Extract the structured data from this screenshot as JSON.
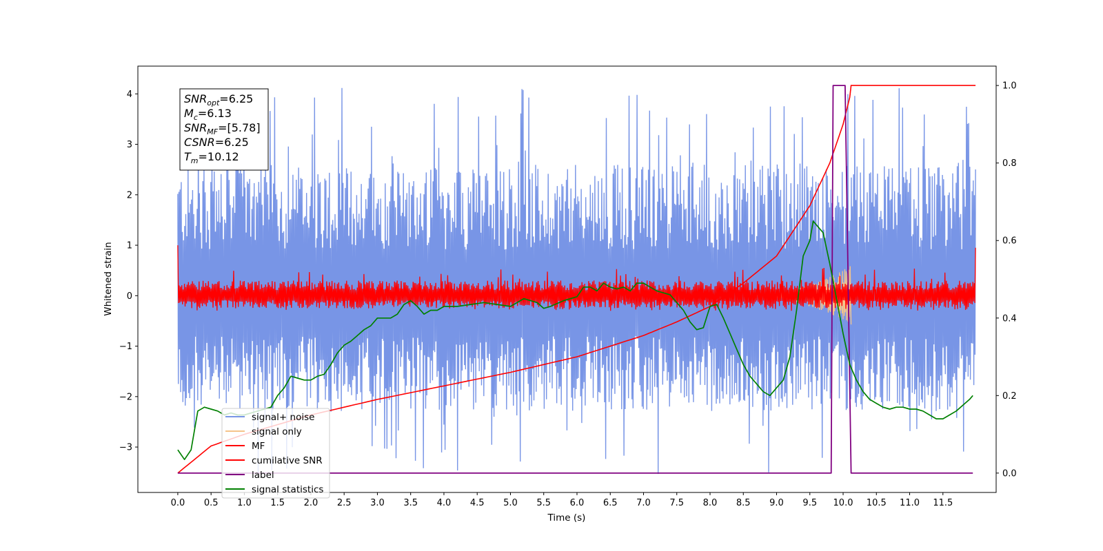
{
  "chart_data": {
    "type": "line",
    "xlabel": "Time (s)",
    "ylabel": "Whitened strain",
    "xlim": [
      -0.6,
      12.3
    ],
    "ylim": [
      -3.9,
      4.55
    ],
    "y2lim": [
      -0.05,
      1.05
    ],
    "x_ticks": [
      "0.0",
      "0.5",
      "1.0",
      "1.5",
      "2.0",
      "2.5",
      "3.0",
      "3.5",
      "4.0",
      "4.5",
      "5.0",
      "5.5",
      "6.0",
      "6.5",
      "7.0",
      "7.5",
      "8.0",
      "8.5",
      "9.0",
      "9.5",
      "10.0",
      "10.5",
      "11.0",
      "11.5"
    ],
    "y_ticks": [
      4,
      3,
      2,
      1,
      0,
      -1,
      -2,
      -3
    ],
    "y_tick_labels": [
      "4",
      "3",
      "2",
      "1",
      "0",
      "−1",
      "−2",
      "−3"
    ],
    "y2_ticks": [
      0.0,
      0.2,
      0.4,
      0.6,
      0.8,
      1.0
    ],
    "y2_tick_labels": [
      "0.0",
      "0.2",
      "0.4",
      "0.6",
      "0.8",
      "1.0"
    ],
    "grid": false,
    "legend_position": "lower-left",
    "info_box": {
      "lines": [
        {
          "sym": "SNR",
          "sub": "opt",
          "value": "=6.25"
        },
        {
          "sym": "M",
          "sub": "c",
          "value": "=6.13"
        },
        {
          "sym": "SNR",
          "sub": "MF",
          "value": "=[5.78]"
        },
        {
          "sym": "CSNR",
          "sub": "",
          "value": "=6.25"
        },
        {
          "sym": "T",
          "sub": "m",
          "value": "=10.12"
        }
      ]
    },
    "series": [
      {
        "name": "signal+ noise",
        "color": "#7895e6",
        "axis": "left",
        "style": "noise band",
        "x_range": [
          0.0,
          11.99
        ],
        "mean": 0.0,
        "envelope": [
          -2.3,
          2.6
        ],
        "peak_extremes": [
          -3.55,
          4.18
        ]
      },
      {
        "name": "signal only",
        "color": "#f5c48a",
        "axis": "left",
        "style": "chirp",
        "x_range": [
          8.5,
          10.12
        ],
        "amplitude_peak": 0.6
      },
      {
        "name": "MF",
        "color": "#ff0000",
        "axis": "left",
        "style": "noise band",
        "x_range": [
          0.0,
          11.99
        ],
        "mean": 0.0,
        "envelope": [
          -0.25,
          0.3
        ],
        "peak_extremes": [
          -0.3,
          0.55
        ],
        "edge_values": [
          1.0,
          0.95
        ]
      },
      {
        "name": "cumilative SNR",
        "color": "#ff0000",
        "axis": "right",
        "x": [
          0.0,
          0.5,
          1.0,
          2.0,
          3.0,
          4.0,
          5.0,
          6.0,
          7.0,
          7.5,
          8.0,
          8.5,
          9.0,
          9.5,
          9.8,
          10.0,
          10.1,
          10.12,
          11.99
        ],
        "y": [
          0.0,
          0.07,
          0.1,
          0.15,
          0.19,
          0.225,
          0.26,
          0.3,
          0.355,
          0.39,
          0.43,
          0.49,
          0.56,
          0.69,
          0.8,
          0.9,
          0.97,
          1.0,
          1.0
        ]
      },
      {
        "name": "label",
        "color": "#800080",
        "axis": "right",
        "x": [
          0.0,
          9.82,
          9.85,
          10.03,
          10.12,
          10.15,
          11.95
        ],
        "y": [
          0.0,
          0.0,
          1.0,
          1.0,
          0.0,
          0.0,
          0.0
        ]
      },
      {
        "name": "signal statistics",
        "color": "#008000",
        "axis": "right",
        "x": [
          0.0,
          0.1,
          0.2,
          0.3,
          0.4,
          0.5,
          0.6,
          0.7,
          0.8,
          0.9,
          1.0,
          1.2,
          1.4,
          1.5,
          1.6,
          1.7,
          1.8,
          1.9,
          2.0,
          2.1,
          2.2,
          2.3,
          2.4,
          2.5,
          2.6,
          2.7,
          2.8,
          2.9,
          3.0,
          3.1,
          3.2,
          3.3,
          3.4,
          3.5,
          3.6,
          3.7,
          3.8,
          3.9,
          4.0,
          4.2,
          4.4,
          4.6,
          4.8,
          5.0,
          5.2,
          5.4,
          5.5,
          5.6,
          5.8,
          6.0,
          6.1,
          6.2,
          6.3,
          6.4,
          6.5,
          6.6,
          6.7,
          6.8,
          6.9,
          7.0,
          7.1,
          7.2,
          7.3,
          7.4,
          7.5,
          7.6,
          7.7,
          7.8,
          7.9,
          8.0,
          8.1,
          8.2,
          8.3,
          8.4,
          8.5,
          8.6,
          8.7,
          8.8,
          8.9,
          9.0,
          9.1,
          9.2,
          9.3,
          9.4,
          9.5,
          9.55,
          9.6,
          9.7,
          9.8,
          9.9,
          10.0,
          10.1,
          10.2,
          10.3,
          10.4,
          10.5,
          10.6,
          10.7,
          10.8,
          10.9,
          11.0,
          11.1,
          11.2,
          11.3,
          11.4,
          11.5,
          11.6,
          11.7,
          11.8,
          11.9,
          11.95
        ],
        "y": [
          0.06,
          0.035,
          0.06,
          0.16,
          0.17,
          0.165,
          0.16,
          0.15,
          0.155,
          0.15,
          0.15,
          0.16,
          0.17,
          0.2,
          0.22,
          0.25,
          0.245,
          0.24,
          0.24,
          0.25,
          0.255,
          0.28,
          0.31,
          0.33,
          0.34,
          0.355,
          0.37,
          0.38,
          0.4,
          0.4,
          0.4,
          0.41,
          0.435,
          0.445,
          0.43,
          0.41,
          0.42,
          0.42,
          0.43,
          0.43,
          0.435,
          0.44,
          0.435,
          0.43,
          0.45,
          0.44,
          0.425,
          0.43,
          0.445,
          0.455,
          0.48,
          0.48,
          0.47,
          0.49,
          0.48,
          0.475,
          0.48,
          0.47,
          0.49,
          0.49,
          0.48,
          0.47,
          0.465,
          0.46,
          0.44,
          0.42,
          0.39,
          0.37,
          0.375,
          0.43,
          0.435,
          0.4,
          0.36,
          0.32,
          0.28,
          0.25,
          0.23,
          0.21,
          0.2,
          0.22,
          0.24,
          0.3,
          0.42,
          0.56,
          0.6,
          0.65,
          0.64,
          0.62,
          0.54,
          0.45,
          0.36,
          0.28,
          0.24,
          0.21,
          0.19,
          0.18,
          0.17,
          0.165,
          0.17,
          0.17,
          0.165,
          0.165,
          0.16,
          0.15,
          0.14,
          0.14,
          0.15,
          0.16,
          0.175,
          0.19,
          0.2
        ]
      }
    ]
  }
}
